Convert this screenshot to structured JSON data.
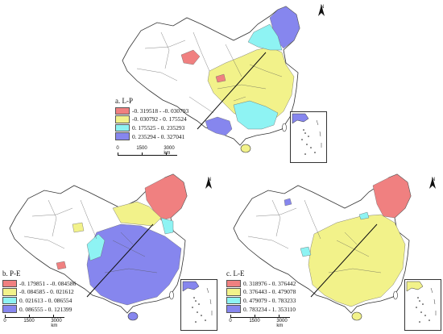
{
  "legend_colors": {
    "c1": "#f08080",
    "c2": "#f2f28a",
    "c3": "#8ef3f3",
    "c4": "#8686ee",
    "none": "#ffffff",
    "border": "#333333"
  },
  "panels": [
    {
      "id": "a",
      "title": "a. L-P",
      "classes": [
        {
          "range": "-0. 319518 - -0. 030793",
          "color": "#f08080"
        },
        {
          "range": "-0. 030792 - 0. 175524",
          "color": "#f2f28a"
        },
        {
          "range": "0. 175525 - 0. 235293",
          "color": "#8ef3f3"
        },
        {
          "range": "0. 235294 - 0. 327041",
          "color": "#8686ee"
        }
      ],
      "scale_labels": [
        "0",
        "1500",
        "3000 km"
      ],
      "north": "N"
    },
    {
      "id": "b",
      "title": "b. P-E",
      "classes": [
        {
          "range": "-0. 179851 - -0. 084586",
          "color": "#f08080"
        },
        {
          "range": "-0. 084585 - 0. 021612",
          "color": "#f2f28a"
        },
        {
          "range": "0. 021613 - 0. 086554",
          "color": "#8ef3f3"
        },
        {
          "range": "0. 086555 - 0. 121399",
          "color": "#8686ee"
        }
      ],
      "scale_labels": [
        "0",
        "1500",
        "3000 km"
      ],
      "north": "N"
    },
    {
      "id": "c",
      "title": "c. L-E",
      "classes": [
        {
          "range": "0. 318976 - 0. 376442",
          "color": "#f08080"
        },
        {
          "range": "0. 376443 - 0. 479078",
          "color": "#f2f28a"
        },
        {
          "range": "0. 479079 - 0. 783233",
          "color": "#8ef3f3"
        },
        {
          "range": "0. 783234 - 1. 353110",
          "color": "#8686ee"
        }
      ],
      "scale_labels": [
        "0",
        "1500",
        "3000 km"
      ],
      "north": "N"
    }
  ]
}
